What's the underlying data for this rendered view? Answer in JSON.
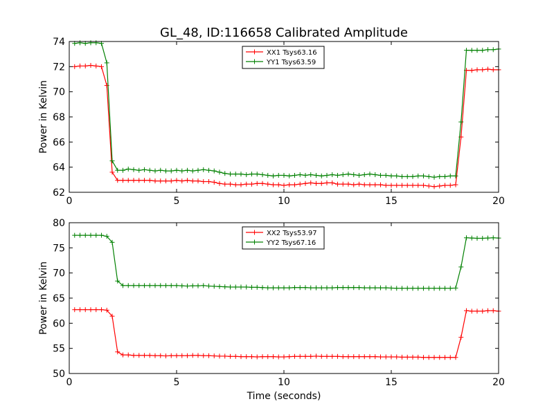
{
  "figure": {
    "title": "GL_48, ID:116658 Calibrated Amplitude"
  },
  "chart_data": [
    {
      "type": "line",
      "title": "GL_48, ID:116658 Calibrated Amplitude",
      "xlabel": "",
      "ylabel": "Power in Kelvin",
      "xlim": [
        0,
        20
      ],
      "ylim": [
        62,
        74
      ],
      "xticks": [
        0,
        5,
        10,
        15,
        20
      ],
      "yticks": [
        62,
        64,
        66,
        68,
        70,
        72,
        74
      ],
      "grid": false,
      "legend_position": "top-center",
      "x": [
        0.25,
        0.5,
        0.75,
        1.0,
        1.25,
        1.5,
        1.75,
        2.0,
        2.25,
        2.5,
        2.75,
        3.0,
        3.25,
        3.5,
        3.75,
        4.0,
        4.25,
        4.5,
        4.75,
        5.0,
        5.25,
        5.5,
        5.75,
        6.0,
        6.25,
        6.5,
        6.75,
        7.0,
        7.25,
        7.5,
        7.75,
        8.0,
        8.25,
        8.5,
        8.75,
        9.0,
        9.25,
        9.5,
        9.75,
        10.0,
        10.25,
        10.5,
        10.75,
        11.0,
        11.25,
        11.5,
        11.75,
        12.0,
        12.25,
        12.5,
        12.75,
        13.0,
        13.25,
        13.5,
        13.75,
        14.0,
        14.25,
        14.5,
        14.75,
        15.0,
        15.25,
        15.5,
        15.75,
        16.0,
        16.25,
        16.5,
        16.75,
        17.0,
        17.25,
        17.5,
        17.75,
        18.0,
        18.25,
        18.5,
        18.75,
        19.0,
        19.25,
        19.5,
        19.75,
        20.0
      ],
      "series": [
        {
          "name": "XX1 Tsys63.16",
          "color": "#ff0000",
          "values": [
            72.0,
            72.05,
            72.05,
            72.1,
            72.05,
            72.0,
            70.5,
            63.6,
            62.95,
            62.95,
            62.95,
            62.95,
            62.95,
            62.95,
            62.95,
            62.9,
            62.9,
            62.9,
            62.9,
            62.95,
            62.9,
            62.95,
            62.9,
            62.9,
            62.85,
            62.85,
            62.8,
            62.7,
            62.65,
            62.65,
            62.6,
            62.6,
            62.65,
            62.65,
            62.7,
            62.7,
            62.65,
            62.6,
            62.6,
            62.55,
            62.6,
            62.6,
            62.65,
            62.7,
            62.75,
            62.7,
            62.7,
            62.75,
            62.75,
            62.65,
            62.65,
            62.65,
            62.6,
            62.65,
            62.6,
            62.6,
            62.6,
            62.6,
            62.55,
            62.55,
            62.55,
            62.55,
            62.55,
            62.55,
            62.55,
            62.55,
            62.5,
            62.45,
            62.5,
            62.55,
            62.55,
            62.6,
            66.4,
            71.7,
            71.7,
            71.75,
            71.75,
            71.8,
            71.75,
            71.75
          ]
        },
        {
          "name": "YY1 Tsys63.59",
          "color": "#008000",
          "values": [
            73.85,
            73.9,
            73.85,
            73.9,
            73.9,
            73.85,
            72.3,
            64.5,
            63.75,
            63.75,
            63.85,
            63.8,
            63.75,
            63.8,
            63.75,
            63.7,
            63.75,
            63.7,
            63.7,
            63.75,
            63.7,
            63.75,
            63.7,
            63.75,
            63.8,
            63.75,
            63.7,
            63.6,
            63.5,
            63.45,
            63.45,
            63.45,
            63.4,
            63.45,
            63.45,
            63.4,
            63.35,
            63.3,
            63.35,
            63.35,
            63.3,
            63.35,
            63.4,
            63.35,
            63.4,
            63.35,
            63.3,
            63.35,
            63.4,
            63.35,
            63.4,
            63.45,
            63.4,
            63.35,
            63.4,
            63.45,
            63.4,
            63.35,
            63.35,
            63.3,
            63.3,
            63.25,
            63.25,
            63.25,
            63.3,
            63.3,
            63.25,
            63.2,
            63.25,
            63.25,
            63.3,
            63.3,
            67.6,
            73.3,
            73.3,
            73.3,
            73.3,
            73.35,
            73.35,
            73.4
          ]
        }
      ]
    },
    {
      "type": "line",
      "title": "",
      "xlabel": "Time (seconds)",
      "ylabel": "Power in Kelvin",
      "xlim": [
        0,
        20
      ],
      "ylim": [
        50,
        80
      ],
      "xticks": [
        0,
        5,
        10,
        15,
        20
      ],
      "yticks": [
        50,
        55,
        60,
        65,
        70,
        75,
        80
      ],
      "grid": false,
      "legend_position": "top-center",
      "x": [
        0.25,
        0.5,
        0.75,
        1.0,
        1.25,
        1.5,
        1.75,
        2.0,
        2.25,
        2.5,
        2.75,
        3.0,
        3.25,
        3.5,
        3.75,
        4.0,
        4.25,
        4.5,
        4.75,
        5.0,
        5.25,
        5.5,
        5.75,
        6.0,
        6.25,
        6.5,
        6.75,
        7.0,
        7.25,
        7.5,
        7.75,
        8.0,
        8.25,
        8.5,
        8.75,
        9.0,
        9.25,
        9.5,
        9.75,
        10.0,
        10.25,
        10.5,
        10.75,
        11.0,
        11.25,
        11.5,
        11.75,
        12.0,
        12.25,
        12.5,
        12.75,
        13.0,
        13.25,
        13.5,
        13.75,
        14.0,
        14.25,
        14.5,
        14.75,
        15.0,
        15.25,
        15.5,
        15.75,
        16.0,
        16.25,
        16.5,
        16.75,
        17.0,
        17.25,
        17.5,
        17.75,
        18.0,
        18.25,
        18.5,
        18.75,
        19.0,
        19.25,
        19.5,
        19.75,
        20.0
      ],
      "series": [
        {
          "name": "XX2 Tsys53.97",
          "color": "#ff0000",
          "values": [
            62.7,
            62.7,
            62.7,
            62.7,
            62.7,
            62.7,
            62.6,
            61.4,
            54.3,
            53.7,
            53.7,
            53.6,
            53.6,
            53.6,
            53.6,
            53.55,
            53.55,
            53.5,
            53.55,
            53.55,
            53.55,
            53.55,
            53.6,
            53.6,
            53.55,
            53.55,
            53.5,
            53.45,
            53.45,
            53.4,
            53.4,
            53.35,
            53.35,
            53.35,
            53.3,
            53.35,
            53.35,
            53.35,
            53.3,
            53.3,
            53.35,
            53.4,
            53.4,
            53.4,
            53.4,
            53.45,
            53.4,
            53.4,
            53.4,
            53.4,
            53.35,
            53.35,
            53.35,
            53.35,
            53.35,
            53.35,
            53.35,
            53.3,
            53.3,
            53.3,
            53.3,
            53.25,
            53.25,
            53.25,
            53.25,
            53.2,
            53.2,
            53.2,
            53.2,
            53.2,
            53.2,
            53.2,
            57.2,
            62.5,
            62.4,
            62.4,
            62.4,
            62.5,
            62.5,
            62.4
          ]
        },
        {
          "name": "YY2 Tsys67.16",
          "color": "#008000",
          "values": [
            77.5,
            77.5,
            77.5,
            77.5,
            77.5,
            77.5,
            77.3,
            76.1,
            68.4,
            67.5,
            67.5,
            67.5,
            67.5,
            67.5,
            67.5,
            67.5,
            67.5,
            67.5,
            67.5,
            67.5,
            67.45,
            67.4,
            67.45,
            67.45,
            67.5,
            67.4,
            67.35,
            67.3,
            67.25,
            67.2,
            67.2,
            67.2,
            67.2,
            67.15,
            67.15,
            67.1,
            67.05,
            67.05,
            67.05,
            67.05,
            67.05,
            67.1,
            67.1,
            67.1,
            67.05,
            67.05,
            67.05,
            67.05,
            67.05,
            67.1,
            67.1,
            67.1,
            67.1,
            67.1,
            67.05,
            67.05,
            67.05,
            67.05,
            67.05,
            67.0,
            66.95,
            66.95,
            66.95,
            66.95,
            66.95,
            66.95,
            66.95,
            66.95,
            66.95,
            66.95,
            66.95,
            67.0,
            71.2,
            77.0,
            76.95,
            76.9,
            76.9,
            76.95,
            77.0,
            76.95
          ]
        }
      ]
    }
  ]
}
